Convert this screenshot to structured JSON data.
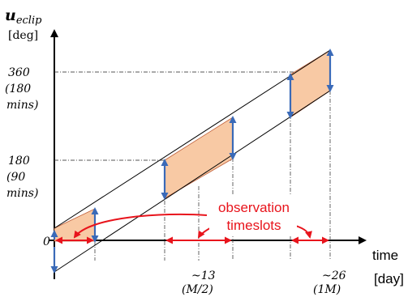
{
  "y_axis": {
    "symbol": "u",
    "subscript": "eclip",
    "unit": "[deg]"
  },
  "x_axis": {
    "label": "time",
    "unit": "[day]"
  },
  "y_ticks": [
    {
      "value": "360",
      "note1": "(180",
      "note2": "mins)"
    },
    {
      "value": "180",
      "note1": "(90",
      "note2": "mins)"
    },
    {
      "value": "0"
    }
  ],
  "x_ticks": [
    {
      "value": "~13",
      "note": "(M/2)"
    },
    {
      "value": "~26",
      "note": "(1M)"
    }
  ],
  "annotation": {
    "line1": "observation",
    "line2": "timeslots",
    "color": "#e8141c"
  },
  "colors": {
    "band_fill": "#f8c9a4",
    "band_stroke": "#c0603a",
    "arrow": "#3a6ab8",
    "axis": "#000000",
    "guide": "#555555"
  }
}
